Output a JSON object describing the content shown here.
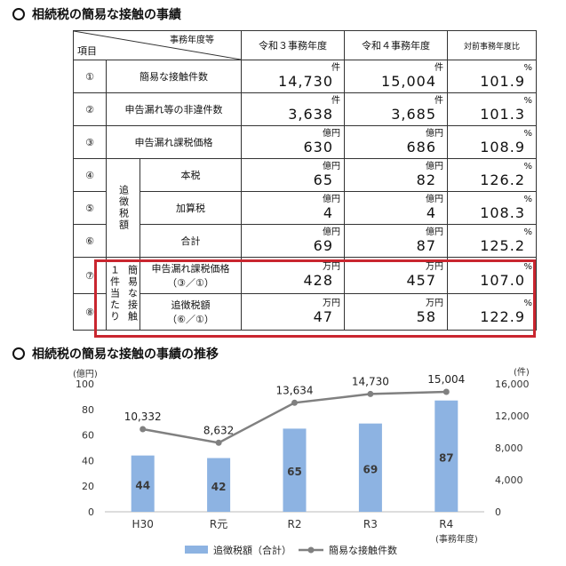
{
  "section1_title": "相続税の簡易な接触の事績",
  "section2_title": "相続税の簡易な接触の事績の推移",
  "table": {
    "header_item": "項目",
    "header_year": "事務年度等",
    "col_r3": "令和３事務年度",
    "col_r4": "令和４事務年度",
    "col_ratio": "対前事務年度比",
    "group_tsuicho": "追徴税額",
    "group_1ken_a": "１件当たり",
    "group_1ken_b": "簡易な接触",
    "rows": [
      {
        "no": "①",
        "label": "簡易な接触件数",
        "unit": "件",
        "r3": "14,730",
        "r4": "15,004",
        "ratio": "101.9"
      },
      {
        "no": "②",
        "label": "申告漏れ等の非違件数",
        "unit": "件",
        "r3": "3,638",
        "r4": "3,685",
        "ratio": "101.3"
      },
      {
        "no": "③",
        "label": "申告漏れ課税価格",
        "unit": "億円",
        "r3": "630",
        "r4": "686",
        "ratio": "108.9"
      },
      {
        "no": "④",
        "label": "本税",
        "unit": "億円",
        "r3": "65",
        "r4": "82",
        "ratio": "126.2"
      },
      {
        "no": "⑤",
        "label": "加算税",
        "unit": "億円",
        "r3": "4",
        "r4": "4",
        "ratio": "108.3"
      },
      {
        "no": "⑥",
        "label": "合計",
        "unit": "億円",
        "r3": "69",
        "r4": "87",
        "ratio": "125.2"
      },
      {
        "no": "⑦",
        "label": "申告漏れ課税価格",
        "sub": "（③／①）",
        "unit": "万円",
        "r3": "428",
        "r4": "457",
        "ratio": "107.0"
      },
      {
        "no": "⑧",
        "label": "追徴税額",
        "sub": "（⑥／①）",
        "unit": "万円",
        "r3": "47",
        "r4": "58",
        "ratio": "122.9"
      }
    ],
    "pct": "%"
  },
  "chart_data": {
    "type": "bar+line",
    "categories": [
      "H30",
      "R元",
      "R2",
      "R3",
      "R4"
    ],
    "series": [
      {
        "name": "追徴税額（合計）",
        "type": "bar",
        "axis": "left",
        "values": [
          44,
          42,
          65,
          69,
          87
        ]
      },
      {
        "name": "簡易な接触件数",
        "type": "line",
        "axis": "right",
        "values": [
          10332,
          8632,
          13634,
          14730,
          15004
        ],
        "labels": [
          "10,332",
          "8,632",
          "13,634",
          "14,730",
          "15,004"
        ]
      }
    ],
    "ylabel_left": "(億円)",
    "ylabel_right": "(件)",
    "xlabel": "(事務年度)",
    "ylim_left": [
      0,
      100
    ],
    "yticks_left": [
      "0",
      "20",
      "40",
      "60",
      "80",
      "100"
    ],
    "ylim_right": [
      0,
      16000
    ],
    "yticks_right": [
      "0",
      "4,000",
      "8,000",
      "12,000",
      "16,000"
    ],
    "colors": {
      "bar": "#8db3e2",
      "line": "#808080",
      "bar_label": "#3a3a3a"
    },
    "legend_position": "bottom"
  }
}
